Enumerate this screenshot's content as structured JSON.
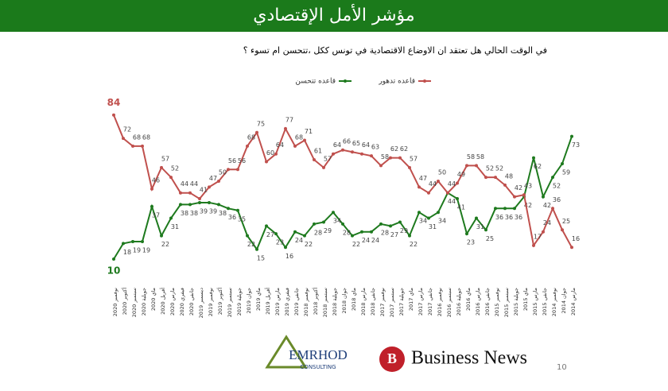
{
  "chart_data": {
    "type": "line",
    "title": "مؤشر الأمل الإقتصادي",
    "subtitle": "في الوقت الحالي هل تعتقد ان الاوضاع الاقتصادية في تونس ككل ،تتحسن ام تسوء ؟",
    "categories": [
      "نوفمبر 2020",
      "أكتوبر 2020",
      "سبتمبر 2020",
      "جويلية 2020",
      "ماي 2020",
      "أفريل 2020",
      "مارس 2020",
      "فيفري 2020",
      "جانفي 2020",
      "ديسمبر 2019",
      "نوفمبر 2019",
      "أكتوبر 2019",
      "سبتمبر 2019",
      "جويلية 2019",
      "جوان 2019",
      "ماي 2019",
      "أفريل 2019",
      "مارس 2019",
      "فيفري 2019",
      "جانفي 2019",
      "نوفمبر 2018",
      "أكتوبر 2018",
      "سبتمبر 2018",
      "جويلية 2018",
      "جوان 2018",
      "ماي 2018",
      "مارس 2018",
      "جانفي 2018",
      "نوفمبر 2017",
      "سبتمبر 2017",
      "جويلية 2017",
      "ماي 2017",
      "مارس 2017",
      "جانفي 2017",
      "نوفمبر 2016",
      "سبتمبر 2016",
      "جويلية 2016",
      "ماي 2016",
      "مارس 2016",
      "جانفي 2016",
      "نوفمبر 2015",
      "سبتمبر 2015",
      "جويلية 2015",
      "ماي 2015",
      "مارس 2015",
      "جانفي 2015",
      "نوفمبر 2014",
      "جوان 2014",
      "مارس 2014"
    ],
    "series": [
      {
        "name": "قاعده تتحسن",
        "color": "#1e7a1e",
        "values": [
          10,
          18,
          19,
          19,
          37,
          22,
          31,
          38,
          38,
          39,
          39,
          38,
          36,
          35,
          22,
          15,
          27,
          23,
          16,
          24,
          22,
          28,
          29,
          34,
          28,
          22,
          24,
          24,
          28,
          27,
          29,
          22,
          34,
          31,
          34,
          44,
          41,
          23,
          31,
          25,
          36,
          36,
          36,
          42,
          62,
          42,
          52,
          59,
          73
        ]
      },
      {
        "name": "قاعده تدهور",
        "color": "#c0504d",
        "values": [
          84,
          72,
          68,
          68,
          46,
          57,
          52,
          44,
          44,
          41,
          47,
          50,
          56,
          56,
          68,
          75,
          60,
          64,
          77,
          68,
          71,
          61,
          57,
          64,
          66,
          65,
          64,
          63,
          58,
          62,
          62,
          57,
          47,
          44,
          50,
          44,
          49,
          58,
          58,
          52,
          52,
          48,
          42,
          43,
          17,
          24,
          36,
          25,
          16
        ]
      }
    ],
    "ylim": [
      0,
      90
    ]
  },
  "footer": {
    "logo1": "EMRHOD",
    "logo1_sub": "CONSULTING",
    "logo2": "Business News",
    "page": "10"
  }
}
